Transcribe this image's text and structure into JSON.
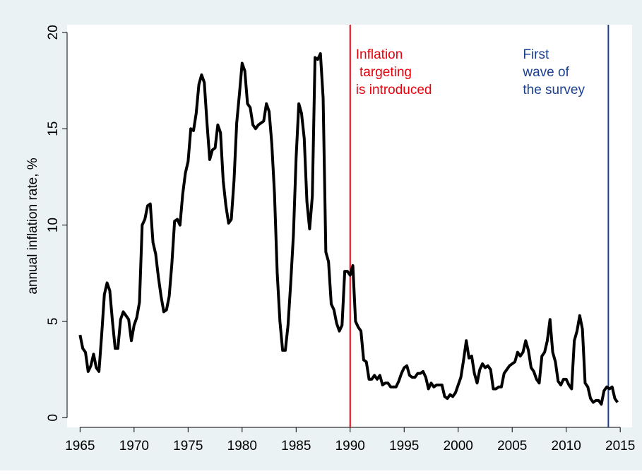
{
  "chart_data": {
    "type": "line",
    "y_label": "annual inflation rate, %",
    "color": "#000000",
    "x": [
      1965,
      1965.25,
      1965.5,
      1965.75,
      1966,
      1966.25,
      1966.5,
      1966.75,
      1967,
      1967.25,
      1967.5,
      1967.75,
      1968,
      1968.25,
      1968.5,
      1968.75,
      1969,
      1969.25,
      1969.5,
      1969.75,
      1970,
      1970.25,
      1970.5,
      1970.75,
      1971,
      1971.25,
      1971.5,
      1971.75,
      1972,
      1972.25,
      1972.5,
      1972.75,
      1973,
      1973.25,
      1973.5,
      1973.75,
      1974,
      1974.25,
      1974.5,
      1974.75,
      1975,
      1975.25,
      1975.5,
      1975.75,
      1976,
      1976.25,
      1976.5,
      1976.75,
      1977,
      1977.25,
      1977.5,
      1977.75,
      1978,
      1978.25,
      1978.5,
      1978.75,
      1979,
      1979.25,
      1979.5,
      1979.75,
      1980,
      1980.25,
      1980.5,
      1980.75,
      1981,
      1981.25,
      1981.5,
      1981.75,
      1982,
      1982.25,
      1982.5,
      1982.75,
      1983,
      1983.25,
      1983.5,
      1983.75,
      1984,
      1984.25,
      1984.5,
      1984.75,
      1985,
      1985.25,
      1985.5,
      1985.75,
      1986,
      1986.25,
      1986.5,
      1986.75,
      1987,
      1987.25,
      1987.5,
      1987.75,
      1988,
      1988.25,
      1988.5,
      1988.75,
      1989,
      1989.25,
      1989.5,
      1989.75,
      1990,
      1990.25,
      1990.5,
      1990.75,
      1991,
      1991.25,
      1991.5,
      1991.75,
      1992,
      1992.25,
      1992.5,
      1992.75,
      1993,
      1993.25,
      1993.5,
      1993.75,
      1994,
      1994.25,
      1994.5,
      1994.75,
      1995,
      1995.25,
      1995.5,
      1995.75,
      1996,
      1996.25,
      1996.5,
      1996.75,
      1997,
      1997.25,
      1997.5,
      1997.75,
      1998,
      1998.25,
      1998.5,
      1998.75,
      1999,
      1999.25,
      1999.5,
      1999.75,
      2000,
      2000.25,
      2000.5,
      2000.75,
      2001,
      2001.25,
      2001.5,
      2001.75,
      2002,
      2002.25,
      2002.5,
      2002.75,
      2003,
      2003.25,
      2003.5,
      2003.75,
      2004,
      2004.25,
      2004.5,
      2004.75,
      2005,
      2005.25,
      2005.5,
      2005.75,
      2006,
      2006.25,
      2006.5,
      2006.75,
      2007,
      2007.25,
      2007.5,
      2007.75,
      2008,
      2008.25,
      2008.5,
      2008.75,
      2009,
      2009.25,
      2009.5,
      2009.75,
      2010,
      2010.25,
      2010.5,
      2010.75,
      2011,
      2011.25,
      2011.5,
      2011.75,
      2012,
      2012.25,
      2012.5,
      2012.75,
      2013,
      2013.25,
      2013.5,
      2013.75,
      2014,
      2014.25,
      2014.5,
      2014.75
    ],
    "values": [
      4.3,
      3.6,
      3.4,
      2.4,
      2.7,
      3.3,
      2.6,
      2.4,
      4.3,
      6.4,
      7.0,
      6.6,
      5.0,
      3.6,
      3.6,
      5.1,
      5.5,
      5.3,
      5.1,
      4.0,
      4.8,
      5.2,
      6.0,
      10.0,
      10.3,
      11.0,
      11.1,
      9.1,
      8.5,
      7.3,
      6.3,
      5.5,
      5.6,
      6.3,
      8.0,
      10.2,
      10.3,
      10.0,
      11.6,
      12.7,
      13.3,
      15.0,
      14.9,
      15.8,
      17.3,
      17.8,
      17.4,
      15.3,
      13.4,
      13.9,
      14.0,
      15.2,
      14.8,
      12.3,
      11.0,
      10.1,
      10.3,
      12.3,
      15.3,
      16.8,
      18.4,
      18.0,
      16.3,
      16.1,
      15.2,
      15.0,
      15.2,
      15.3,
      15.4,
      16.3,
      15.9,
      14.2,
      11.6,
      7.5,
      5.0,
      3.5,
      3.5,
      4.8,
      7.0,
      9.5,
      13.5,
      16.3,
      15.8,
      14.5,
      11.2,
      9.8,
      11.5,
      18.7,
      18.6,
      18.9,
      16.6,
      8.6,
      8.1,
      5.9,
      5.6,
      4.9,
      4.5,
      4.8,
      7.6,
      7.6,
      7.4,
      7.9,
      5.0,
      4.7,
      4.5,
      3.0,
      2.9,
      2.0,
      2.0,
      2.2,
      2.0,
      2.2,
      1.7,
      1.8,
      1.8,
      1.6,
      1.6,
      1.6,
      1.9,
      2.3,
      2.6,
      2.7,
      2.2,
      2.1,
      2.1,
      2.3,
      2.3,
      2.4,
      2.1,
      1.5,
      1.8,
      1.6,
      1.7,
      1.7,
      1.7,
      1.1,
      1.0,
      1.2,
      1.1,
      1.3,
      1.7,
      2.1,
      3.0,
      4.0,
      3.1,
      3.2,
      2.3,
      1.8,
      2.5,
      2.8,
      2.6,
      2.7,
      2.5,
      1.5,
      1.5,
      1.6,
      1.6,
      2.3,
      2.5,
      2.7,
      2.8,
      2.9,
      3.4,
      3.2,
      3.4,
      4.0,
      3.5,
      2.6,
      2.4,
      2.0,
      1.8,
      3.2,
      3.4,
      4.0,
      5.1,
      3.4,
      2.9,
      1.9,
      1.7,
      2.0,
      2.0,
      1.7,
      1.5,
      4.0,
      4.5,
      5.3,
      4.6,
      1.8,
      1.6,
      1.0,
      0.8,
      0.9,
      0.9,
      0.7,
      1.4,
      1.6,
      1.5,
      1.6,
      1.0,
      0.8
    ],
    "xlim": [
      1963.8,
      2016.1
    ],
    "ylim": [
      -0.5,
      20.4
    ],
    "xticks": [
      1965,
      1970,
      1975,
      1980,
      1985,
      1990,
      1995,
      2000,
      2005,
      2010,
      2015
    ],
    "yticks": [
      0,
      5,
      10,
      15,
      20
    ],
    "vlines": [
      {
        "x": 1990,
        "color": "#e8000b",
        "label": [
          "Inflation",
          " targeting",
          "is introduced"
        ]
      },
      {
        "x": 2013.9,
        "color": "#1a3f8f",
        "label": [
          "First",
          "wave of",
          "the survey"
        ]
      }
    ]
  }
}
